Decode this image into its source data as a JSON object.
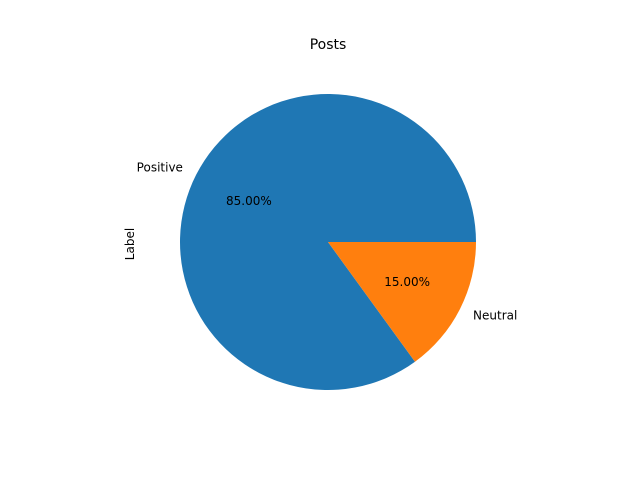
{
  "chart_data": {
    "type": "pie",
    "title": "Posts",
    "ylabel": "Label",
    "labels": [
      "Positive",
      "Neutral"
    ],
    "values": [
      85.0,
      15.0
    ],
    "percent_labels": [
      "85.00%",
      "15.00%"
    ],
    "colors": [
      "#1f77b4",
      "#ff7f0e"
    ]
  }
}
